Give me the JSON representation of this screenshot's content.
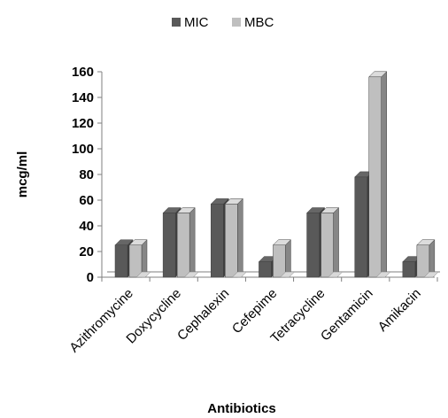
{
  "chart_data": {
    "type": "bar",
    "title": "",
    "xlabel": "Antibiotics",
    "ylabel": "mcg/ml",
    "ylim": [
      0,
      160
    ],
    "yticks": [
      0,
      20,
      40,
      60,
      80,
      100,
      120,
      140,
      160
    ],
    "categories": [
      "Azithromycine",
      "Doxycycline",
      "Cephalexin",
      "Cefepime",
      "Tetracycline",
      "Gentamicin",
      "Amikacin"
    ],
    "series": [
      {
        "name": "MIC",
        "values": [
          25,
          50,
          57,
          12,
          50,
          78,
          12
        ],
        "color": "#595959"
      },
      {
        "name": "MBC",
        "values": [
          25,
          50,
          57,
          25,
          50,
          156,
          25
        ],
        "color": "#bfbfbf"
      }
    ],
    "legend_position": "top",
    "grid": false,
    "style": "3d-clustered-bar"
  }
}
